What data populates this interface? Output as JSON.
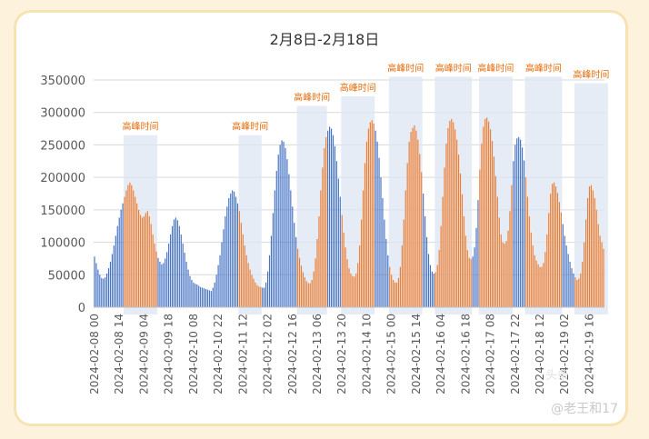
{
  "chart_data": {
    "type": "bar",
    "title": "2月8日-2月18日",
    "ylim": [
      0,
      350000
    ],
    "yticks": [
      "0",
      "50000",
      "100000",
      "150000",
      "200000",
      "250000",
      "300000",
      "350000"
    ],
    "xticks": [
      "2024-02-08 00",
      "2024-02-08 14",
      "2024-02-09 04",
      "2024-02-09 18",
      "2024-02-10 08",
      "2024-02-10 22",
      "2024-02-11 12",
      "2024-02-12 02",
      "2024-02-12 16",
      "2024-02-13 06",
      "2024-02-13 20",
      "2024-02-14 10",
      "2024-02-15 00",
      "2024-02-15 14",
      "2024-02-16 04",
      "2024-02-16 18",
      "2024-02-17 08",
      "2024-02-17 22",
      "2024-02-18 12",
      "2024-02-19 02",
      "2024-02-19 16"
    ],
    "grid": true,
    "annotation_label": "高峰时间",
    "peak_windows": [
      {
        "start": 17,
        "end": 35,
        "top": 265000
      },
      {
        "start": 82,
        "end": 94,
        "top": 265000
      },
      {
        "start": 115,
        "end": 131,
        "top": 310000
      },
      {
        "start": 140,
        "end": 158,
        "top": 325000
      },
      {
        "start": 167,
        "end": 185,
        "top": 355000
      },
      {
        "start": 193,
        "end": 213,
        "top": 355000
      },
      {
        "start": 218,
        "end": 236,
        "top": 355000
      },
      {
        "start": 244,
        "end": 264,
        "top": 355000
      },
      {
        "start": 272,
        "end": 290,
        "top": 345000
      }
    ],
    "series": [
      {
        "type": "off-peak",
        "color": "#4472c4",
        "values": [
          78000,
          68000,
          58000,
          50000,
          45000,
          44000,
          46000,
          52000,
          60000,
          70000,
          82000,
          95000,
          110000,
          125000,
          138000,
          150000,
          160000,
          170000,
          180000,
          188000,
          192000,
          188000,
          180000,
          170000,
          160000,
          150000,
          142000,
          138000,
          140000,
          145000,
          148000,
          140000,
          128000,
          112000,
          98000,
          86000,
          76000,
          70000,
          66000,
          68000,
          75000,
          85000,
          98000,
          112000,
          125000,
          135000,
          138000,
          134000,
          125000,
          112000,
          98000,
          84000,
          70000,
          58000,
          48000,
          42000,
          38000,
          36000,
          35000,
          33000,
          31000,
          30000,
          29000,
          28000,
          27000,
          26000,
          25000,
          30000,
          38000,
          50000,
          65000,
          80000,
          100000,
          120000,
          140000,
          155000,
          168000,
          175000,
          180000,
          178000,
          170000,
          160000,
          148000,
          130000,
          112000,
          95000,
          80000,
          68000,
          58000,
          50000,
          44000,
          38000,
          34000,
          32000,
          31000,
          30000,
          30000,
          38000,
          55000,
          80000,
          110000,
          145000,
          180000,
          210000,
          235000,
          250000,
          257000,
          255000,
          245000,
          228000,
          205000,
          180000,
          155000,
          130000,
          108000,
          90000,
          76000,
          64000,
          54000,
          46000,
          40000,
          37000,
          37000,
          42000,
          55000,
          75000,
          105000,
          140000,
          180000,
          215000,
          245000,
          262000,
          272000,
          278000,
          275000,
          265000,
          248000,
          225000,
          198000,
          170000,
          142000,
          115000,
          92000,
          74000,
          60000,
          52000,
          48000,
          47000,
          52000,
          68000,
          95000,
          135000,
          180000,
          222000,
          255000,
          275000,
          285000,
          288000,
          283000,
          272000,
          255000,
          230000,
          200000,
          168000,
          135000,
          105000,
          80000,
          62000,
          50000,
          42000,
          38000,
          38000,
          45000,
          62000,
          95000,
          135000,
          180000,
          222000,
          255000,
          270000,
          276000,
          280000,
          272000,
          258000,
          236000,
          208000,
          175000,
          140000,
          108000,
          82000,
          65000,
          55000,
          52000,
          54000,
          65000,
          88000,
          125000,
          170000,
          215000,
          252000,
          276000,
          287000,
          290000,
          285000,
          274000,
          258000,
          235000,
          206000,
          174000,
          140000,
          110000,
          88000,
          76000,
          74000,
          78000,
          92000,
          122000,
          165000,
          212000,
          252000,
          278000,
          290000,
          292000,
          286000,
          274000,
          256000,
          232000,
          202000,
          170000,
          138000,
          112000,
          100000,
          98000,
          102000,
          118000,
          148000,
          188000,
          225000,
          250000,
          260000,
          262000,
          258000,
          246000,
          226000,
          200000,
          170000,
          140000,
          115000,
          95000,
          80000,
          72000,
          66000,
          62000,
          62000,
          68000,
          85000,
          112000,
          145000,
          175000,
          190000,
          192000,
          186000,
          176000,
          162000,
          146000,
          128000,
          110000,
          95000,
          82000,
          70000,
          60000,
          52000,
          46000,
          42000,
          44000,
          52000,
          70000,
          100000,
          135000,
          168000,
          186000,
          188000,
          180000,
          168000,
          150000,
          128000,
          110000,
          100000,
          90000
        ]
      }
    ]
  },
  "watermark": "@老王和17",
  "watermark_logo": "头条"
}
